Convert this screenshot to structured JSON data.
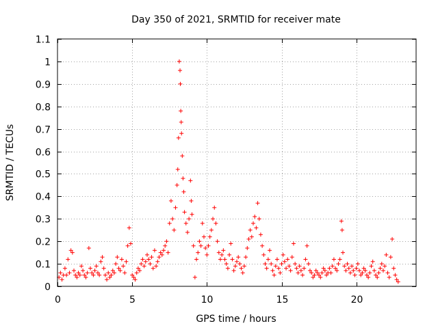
{
  "chart_data": {
    "type": "scatter",
    "title": "Day 350 of 2021, SRMTID for receiver mate",
    "xlabel": "GPS time / hours",
    "ylabel": "SRMTID / TECUs",
    "xlim": [
      0,
      24
    ],
    "ylim": [
      0,
      1.1
    ],
    "x_ticks": [
      0,
      5,
      10,
      15,
      20
    ],
    "x_tick_labels": [
      "0",
      "5",
      "10",
      "15",
      "20"
    ],
    "y_ticks": [
      0,
      0.1,
      0.2,
      0.3,
      0.4,
      0.5,
      0.6,
      0.7,
      0.8,
      0.9,
      1,
      1.1
    ],
    "y_tick_labels": [
      "0",
      "0.1",
      "0.2",
      "0.3",
      "0.4",
      "0.5",
      "0.6",
      "0.7",
      "0.8",
      "0.9",
      "1",
      "1.1"
    ],
    "grid": true,
    "marker": "+",
    "color": "#ff0000",
    "series": [
      {
        "name": "SRMTID",
        "points": [
          [
            0.1,
            0.04
          ],
          [
            0.2,
            0.06
          ],
          [
            0.3,
            0.03
          ],
          [
            0.4,
            0.05
          ],
          [
            0.5,
            0.08
          ],
          [
            0.6,
            0.05
          ],
          [
            0.7,
            0.12
          ],
          [
            0.8,
            0.06
          ],
          [
            0.9,
            0.16
          ],
          [
            1.0,
            0.15
          ],
          [
            1.1,
            0.07
          ],
          [
            1.2,
            0.05
          ],
          [
            1.3,
            0.04
          ],
          [
            1.4,
            0.06
          ],
          [
            1.5,
            0.05
          ],
          [
            1.6,
            0.09
          ],
          [
            1.7,
            0.07
          ],
          [
            1.8,
            0.05
          ],
          [
            1.9,
            0.04
          ],
          [
            2.0,
            0.06
          ],
          [
            2.1,
            0.17
          ],
          [
            2.2,
            0.08
          ],
          [
            2.3,
            0.06
          ],
          [
            2.4,
            0.05
          ],
          [
            2.5,
            0.07
          ],
          [
            2.6,
            0.09
          ],
          [
            2.7,
            0.06
          ],
          [
            2.8,
            0.05
          ],
          [
            2.9,
            0.11
          ],
          [
            3.0,
            0.13
          ],
          [
            3.1,
            0.08
          ],
          [
            3.2,
            0.05
          ],
          [
            3.3,
            0.03
          ],
          [
            3.4,
            0.06
          ],
          [
            3.5,
            0.04
          ],
          [
            3.6,
            0.05
          ],
          [
            3.7,
            0.07
          ],
          [
            3.8,
            0.06
          ],
          [
            3.9,
            0.1
          ],
          [
            4.0,
            0.13
          ],
          [
            4.1,
            0.08
          ],
          [
            4.2,
            0.07
          ],
          [
            4.3,
            0.12
          ],
          [
            4.4,
            0.09
          ],
          [
            4.5,
            0.06
          ],
          [
            4.6,
            0.11
          ],
          [
            4.7,
            0.18
          ],
          [
            4.8,
            0.26
          ],
          [
            4.9,
            0.19
          ],
          [
            5.0,
            0.05
          ],
          [
            5.1,
            0.04
          ],
          [
            5.2,
            0.03
          ],
          [
            5.3,
            0.06
          ],
          [
            5.4,
            0.08
          ],
          [
            5.5,
            0.07
          ],
          [
            5.6,
            0.1
          ],
          [
            5.7,
            0.12
          ],
          [
            5.8,
            0.09
          ],
          [
            5.9,
            0.11
          ],
          [
            6.0,
            0.14
          ],
          [
            6.1,
            0.12
          ],
          [
            6.2,
            0.1
          ],
          [
            6.3,
            0.13
          ],
          [
            6.4,
            0.08
          ],
          [
            6.5,
            0.16
          ],
          [
            6.6,
            0.09
          ],
          [
            6.7,
            0.11
          ],
          [
            6.8,
            0.13
          ],
          [
            6.9,
            0.15
          ],
          [
            7.0,
            0.14
          ],
          [
            7.1,
            0.16
          ],
          [
            7.2,
            0.18
          ],
          [
            7.3,
            0.2
          ],
          [
            7.4,
            0.15
          ],
          [
            7.5,
            0.28
          ],
          [
            7.6,
            0.38
          ],
          [
            7.7,
            0.3
          ],
          [
            7.8,
            0.25
          ],
          [
            7.9,
            0.35
          ],
          [
            8.0,
            0.45
          ],
          [
            8.05,
            0.52
          ],
          [
            8.1,
            0.66
          ],
          [
            8.15,
            1.0
          ],
          [
            8.2,
            0.96
          ],
          [
            8.22,
            0.9
          ],
          [
            8.25,
            0.78
          ],
          [
            8.28,
            0.73
          ],
          [
            8.3,
            0.68
          ],
          [
            8.35,
            0.58
          ],
          [
            8.4,
            0.48
          ],
          [
            8.45,
            0.42
          ],
          [
            8.5,
            0.33
          ],
          [
            8.6,
            0.28
          ],
          [
            8.7,
            0.24
          ],
          [
            8.8,
            0.3
          ],
          [
            8.9,
            0.47
          ],
          [
            8.95,
            0.38
          ],
          [
            9.0,
            0.32
          ],
          [
            9.1,
            0.18
          ],
          [
            9.2,
            0.04
          ],
          [
            9.3,
            0.12
          ],
          [
            9.4,
            0.15
          ],
          [
            9.5,
            0.2
          ],
          [
            9.6,
            0.18
          ],
          [
            9.7,
            0.28
          ],
          [
            9.8,
            0.22
          ],
          [
            9.9,
            0.17
          ],
          [
            10.0,
            0.14
          ],
          [
            10.1,
            0.18
          ],
          [
            10.2,
            0.22
          ],
          [
            10.3,
            0.25
          ],
          [
            10.4,
            0.3
          ],
          [
            10.5,
            0.35
          ],
          [
            10.6,
            0.28
          ],
          [
            10.7,
            0.2
          ],
          [
            10.8,
            0.15
          ],
          [
            10.9,
            0.12
          ],
          [
            11.0,
            0.14
          ],
          [
            11.1,
            0.16
          ],
          [
            11.2,
            0.12
          ],
          [
            11.3,
            0.1
          ],
          [
            11.4,
            0.08
          ],
          [
            11.5,
            0.14
          ],
          [
            11.6,
            0.19
          ],
          [
            11.7,
            0.12
          ],
          [
            11.8,
            0.07
          ],
          [
            11.9,
            0.09
          ],
          [
            12.0,
            0.11
          ],
          [
            12.1,
            0.13
          ],
          [
            12.2,
            0.1
          ],
          [
            12.3,
            0.08
          ],
          [
            12.4,
            0.06
          ],
          [
            12.5,
            0.09
          ],
          [
            12.6,
            0.13
          ],
          [
            12.7,
            0.17
          ],
          [
            12.8,
            0.21
          ],
          [
            12.9,
            0.25
          ],
          [
            13.0,
            0.22
          ],
          [
            13.1,
            0.28
          ],
          [
            13.2,
            0.31
          ],
          [
            13.3,
            0.26
          ],
          [
            13.4,
            0.37
          ],
          [
            13.5,
            0.3
          ],
          [
            13.6,
            0.23
          ],
          [
            13.7,
            0.18
          ],
          [
            13.8,
            0.14
          ],
          [
            13.9,
            0.1
          ],
          [
            14.0,
            0.08
          ],
          [
            14.1,
            0.12
          ],
          [
            14.2,
            0.16
          ],
          [
            14.3,
            0.1
          ],
          [
            14.4,
            0.07
          ],
          [
            14.5,
            0.05
          ],
          [
            14.6,
            0.09
          ],
          [
            14.7,
            0.12
          ],
          [
            14.8,
            0.08
          ],
          [
            14.9,
            0.06
          ],
          [
            15.0,
            0.1
          ],
          [
            15.1,
            0.14
          ],
          [
            15.2,
            0.11
          ],
          [
            15.3,
            0.08
          ],
          [
            15.4,
            0.12
          ],
          [
            15.5,
            0.09
          ],
          [
            15.6,
            0.07
          ],
          [
            15.7,
            0.13
          ],
          [
            15.8,
            0.19
          ],
          [
            15.9,
            0.1
          ],
          [
            16.0,
            0.08
          ],
          [
            16.1,
            0.06
          ],
          [
            16.2,
            0.09
          ],
          [
            16.3,
            0.07
          ],
          [
            16.4,
            0.05
          ],
          [
            16.5,
            0.08
          ],
          [
            16.6,
            0.12
          ],
          [
            16.7,
            0.18
          ],
          [
            16.8,
            0.1
          ],
          [
            16.9,
            0.07
          ],
          [
            17.0,
            0.06
          ],
          [
            17.1,
            0.04
          ],
          [
            17.2,
            0.05
          ],
          [
            17.3,
            0.07
          ],
          [
            17.4,
            0.06
          ],
          [
            17.5,
            0.05
          ],
          [
            17.6,
            0.04
          ],
          [
            17.7,
            0.06
          ],
          [
            17.8,
            0.08
          ],
          [
            17.9,
            0.07
          ],
          [
            18.0,
            0.05
          ],
          [
            18.1,
            0.06
          ],
          [
            18.2,
            0.08
          ],
          [
            18.3,
            0.06
          ],
          [
            18.4,
            0.09
          ],
          [
            18.5,
            0.12
          ],
          [
            18.6,
            0.08
          ],
          [
            18.7,
            0.07
          ],
          [
            18.8,
            0.1
          ],
          [
            18.9,
            0.12
          ],
          [
            19.0,
            0.29
          ],
          [
            19.05,
            0.25
          ],
          [
            19.1,
            0.15
          ],
          [
            19.2,
            0.09
          ],
          [
            19.3,
            0.07
          ],
          [
            19.4,
            0.1
          ],
          [
            19.5,
            0.08
          ],
          [
            19.6,
            0.06
          ],
          [
            19.7,
            0.09
          ],
          [
            19.8,
            0.07
          ],
          [
            19.9,
            0.05
          ],
          [
            20.0,
            0.08
          ],
          [
            20.1,
            0.1
          ],
          [
            20.2,
            0.07
          ],
          [
            20.3,
            0.05
          ],
          [
            20.4,
            0.06
          ],
          [
            20.5,
            0.08
          ],
          [
            20.6,
            0.07
          ],
          [
            20.7,
            0.05
          ],
          [
            20.8,
            0.04
          ],
          [
            20.9,
            0.06
          ],
          [
            21.0,
            0.09
          ],
          [
            21.1,
            0.11
          ],
          [
            21.2,
            0.07
          ],
          [
            21.3,
            0.05
          ],
          [
            21.4,
            0.04
          ],
          [
            21.5,
            0.06
          ],
          [
            21.6,
            0.08
          ],
          [
            21.7,
            0.1
          ],
          [
            21.8,
            0.07
          ],
          [
            21.9,
            0.09
          ],
          [
            22.0,
            0.14
          ],
          [
            22.1,
            0.06
          ],
          [
            22.2,
            0.04
          ],
          [
            22.3,
            0.13
          ],
          [
            22.4,
            0.21
          ],
          [
            22.5,
            0.08
          ],
          [
            22.6,
            0.05
          ],
          [
            22.7,
            0.03
          ],
          [
            22.8,
            0.02
          ]
        ]
      }
    ]
  }
}
